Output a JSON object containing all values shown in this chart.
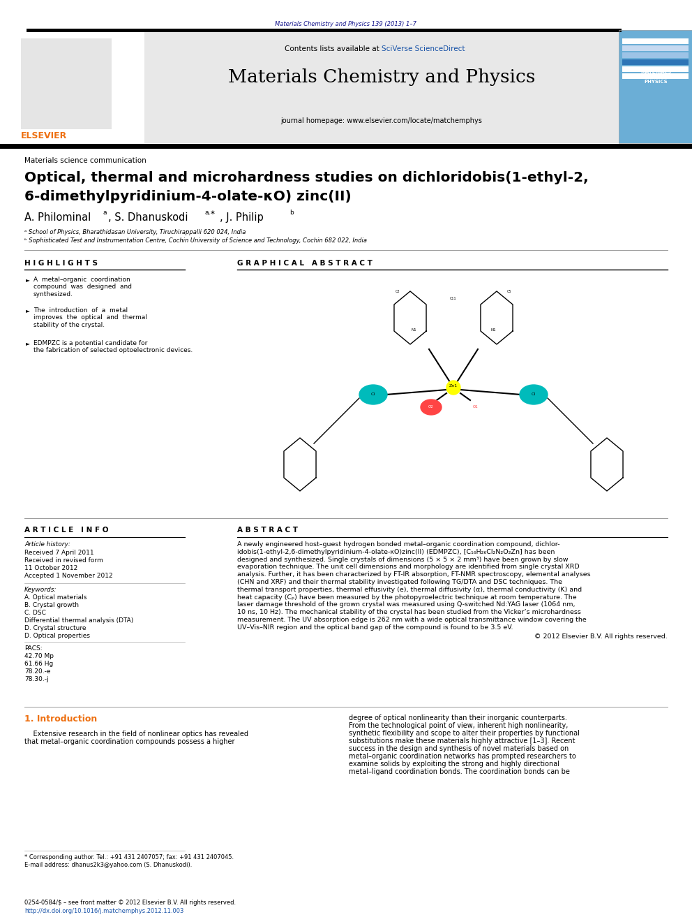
{
  "page_width": 9.92,
  "page_height": 13.23,
  "background_color": "#ffffff",
  "top_journal_line": "Materials Chemistry and Physics 139 (2013) 1–7",
  "journal_title": "Materials Chemistry and Physics",
  "contents_line_prefix": "Contents lists available at ",
  "contents_line_link": "SciVerse ScienceDirect",
  "journal_homepage": "journal homepage: www.elsevier.com/locate/matchemphys",
  "article_type": "Materials science communication",
  "paper_title_line1": "Optical, thermal and microhardness studies on dichloridobis(1-ethyl-2,",
  "paper_title_line2": "6-dimethylpyridinium-4-olate-κO) zinc(II)",
  "highlights_title": "H I G H L I G H T S",
  "graphical_abstract_title": "G R A P H I C A L   A B S T R A C T",
  "highlight1": "A metal–organic coordination\ncompound was designed and\nsynthesized.",
  "highlight2": "The introduction of a metal\nimproves the optical and thermal\nstability of the crystal.",
  "highlight3": "EDMPZC is a potential candidate for\nthe fabrication of selected optoelectronic devices.",
  "article_info_title": "A R T I C L E   I N F O",
  "abstract_title": "A B S T R A C T",
  "article_history_label": "Article history:",
  "received": "Received 7 April 2011",
  "revised": "Received in revised form",
  "revised2": "11 October 2012",
  "accepted": "Accepted 1 November 2012",
  "keywords_label": "Keywords:",
  "keyword1": "A. Optical materials",
  "keyword2": "B. Crystal growth",
  "keyword3": "C. DSC",
  "keyword4": "Differential thermal analysis (DTA)",
  "keyword5": "D. Crystal structure",
  "keyword6": "D. Optical properties",
  "pacs_label": "PACS:",
  "pacs1": "42.70 Mp",
  "pacs2": "61.66 Hg",
  "pacs3": "78.20.-e",
  "pacs4": "78.30.-j",
  "copyright_line": "© 2012 Elsevier B.V. All rights reserved.",
  "intro_title": "1. Introduction",
  "footnote1": "* Corresponding author. Tel.: +91 431 2407057; fax: +91 431 2407045.",
  "footnote2": "E-mail address: dhanus2k3@yahoo.com (S. Dhanuskodi).",
  "bottom_line1": "0254-0584/$ – see front matter © 2012 Elsevier B.V. All rights reserved.",
  "bottom_line2": "http://dx.doi.org/10.1016/j.matchemphys.2012.11.003",
  "header_bg": "#e8e8e8",
  "elsevier_orange": "#EE7011",
  "link_blue": "#1a54a8",
  "sciverse_blue": "#1a54a8",
  "dark_blue": "#14148c",
  "abstract_lines": [
    "A newly engineered host–guest hydrogen bonded metal–organic coordination compound, dichlor-",
    "idobis(1-ethyl-2,6-dimethylpyridinium-4-olate-κO)zinc(II) (EDMPZC), [C₁₆H₂₆Cl₂N₂O₂Zn] has been",
    "designed and synthesized. Single crystals of dimensions (5 × 5 × 2 mm³) have been grown by slow",
    "evaporation technique. The unit cell dimensions and morphology are identified from single crystal XRD",
    "analysis. Further, it has been characterized by FT-IR absorption, FT-NMR spectroscopy, elemental analyses",
    "(CHN and XRF) and their thermal stability investigated following TG/DTA and DSC techniques. The",
    "thermal transport properties, thermal effusivity (e), thermal diffusivity (α), thermal conductivity (K) and",
    "heat capacity (Cₚ) have been measured by the photopyroelectric technique at room temperature. The",
    "laser damage threshold of the grown crystal was measured using Q-switched Nd:YAG laser (1064 nm,",
    "10 ns, 10 Hz). The mechanical stability of the crystal has been studied from the Vicker’s microhardness",
    "measurement. The UV absorption edge is 262 nm with a wide optical transmittance window covering the",
    "UV–Vis–NIR region and the optical band gap of the compound is found to be 3.5 eV."
  ],
  "intro_left_lines": [
    "    Extensive research in the field of nonlinear optics has revealed",
    "that metal–organic coordination compounds possess a higher"
  ],
  "intro_right_lines": [
    "degree of optical nonlinearity than their inorganic counterparts.",
    "From the technological point of view, inherent high nonlinearity,",
    "synthetic flexibility and scope to alter their properties by functional",
    "substitutions make these materials highly attractive [1–3]. Recent",
    "success in the design and synthesis of novel materials based on",
    "metal–organic coordination networks has prompted researchers to",
    "examine solids by exploiting the strong and highly directional",
    "metal–ligand coordination bonds. The coordination bonds can be"
  ]
}
